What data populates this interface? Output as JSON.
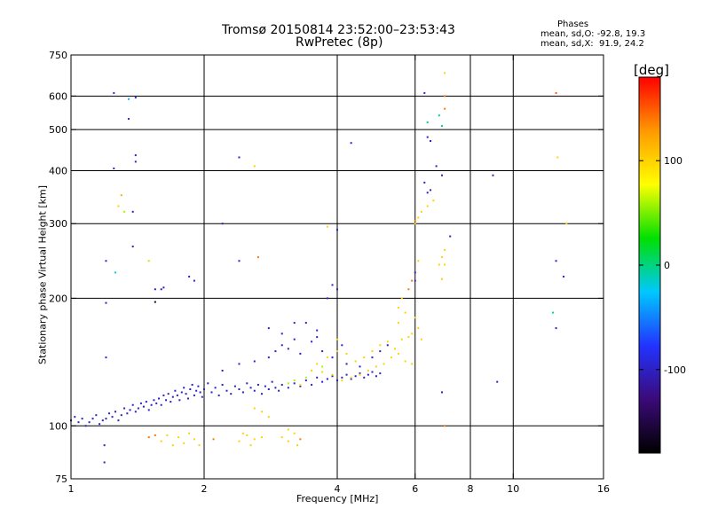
{
  "chart_data": {
    "type": "scatter",
    "title": "Tromsø 20150814 23:52:00–23:53:43",
    "subtitle": "RwPretec (8p)",
    "stats": {
      "title": "Phases",
      "line_o": "mean, sd,O: -92.8, 19.3",
      "line_x": "mean, sd,X:  91.9, 24.2"
    },
    "xlabel": "Frequency [MHz]",
    "ylabel": "Stationary phase Virtual Height [km]",
    "x_scale": "log",
    "y_scale": "log",
    "xlim": [
      1,
      16
    ],
    "ylim": [
      75,
      750
    ],
    "x_ticks": [
      1,
      2,
      4,
      6,
      8,
      10,
      16
    ],
    "y_ticks": [
      75,
      100,
      200,
      300,
      400,
      500,
      600,
      750
    ],
    "x_gridlines": [
      2,
      4,
      6,
      8,
      10
    ],
    "y_gridlines": [
      100,
      200,
      300,
      400,
      500,
      600
    ],
    "grid": true,
    "colorbar": {
      "label": "[deg]",
      "range": [
        -180,
        180
      ],
      "ticks": [
        100,
        0,
        -100
      ],
      "colors": [
        "#000000",
        "#3b0a78",
        "#2233ff",
        "#00c8ff",
        "#00e000",
        "#ffff00",
        "#ff9900",
        "#ff0000"
      ]
    },
    "points": [
      [
        1.0,
        103,
        -100
      ],
      [
        1.02,
        105,
        -100
      ],
      [
        1.04,
        102,
        -100
      ],
      [
        1.06,
        104,
        -100
      ],
      [
        1.08,
        100,
        -100
      ],
      [
        1.1,
        102,
        -100
      ],
      [
        1.12,
        104,
        -100
      ],
      [
        1.14,
        106,
        -100
      ],
      [
        1.16,
        101,
        -100
      ],
      [
        1.18,
        103,
        -100
      ],
      [
        1.2,
        104,
        -100
      ],
      [
        1.22,
        107,
        -100
      ],
      [
        1.24,
        105,
        -100
      ],
      [
        1.26,
        108,
        -100
      ],
      [
        1.28,
        103,
        -100
      ],
      [
        1.3,
        106,
        -100
      ],
      [
        1.32,
        110,
        -100
      ],
      [
        1.34,
        107,
        -100
      ],
      [
        1.36,
        109,
        -100
      ],
      [
        1.38,
        112,
        -100
      ],
      [
        1.4,
        108,
        -100
      ],
      [
        1.42,
        110,
        -100
      ],
      [
        1.44,
        113,
        -100
      ],
      [
        1.46,
        111,
        -100
      ],
      [
        1.48,
        114,
        -100
      ],
      [
        1.5,
        109,
        -100
      ],
      [
        1.52,
        112,
        -100
      ],
      [
        1.54,
        115,
        -100
      ],
      [
        1.56,
        113,
        -100
      ],
      [
        1.58,
        116,
        -100
      ],
      [
        1.6,
        112,
        -100
      ],
      [
        1.62,
        118,
        -100
      ],
      [
        1.64,
        115,
        -100
      ],
      [
        1.66,
        119,
        -100
      ],
      [
        1.68,
        114,
        -100
      ],
      [
        1.7,
        117,
        -100
      ],
      [
        1.72,
        121,
        -100
      ],
      [
        1.74,
        118,
        -100
      ],
      [
        1.76,
        115,
        -100
      ],
      [
        1.78,
        120,
        -100
      ],
      [
        1.8,
        123,
        -100
      ],
      [
        1.82,
        119,
        -100
      ],
      [
        1.84,
        116,
        -100
      ],
      [
        1.86,
        122,
        -100
      ],
      [
        1.88,
        125,
        -100
      ],
      [
        1.9,
        118,
        -100
      ],
      [
        1.92,
        121,
        -100
      ],
      [
        1.94,
        124,
        -100
      ],
      [
        1.96,
        120,
        -100
      ],
      [
        1.98,
        117,
        -100
      ],
      [
        2.0,
        122,
        -100
      ],
      [
        2.04,
        126,
        -100
      ],
      [
        2.08,
        120,
        -100
      ],
      [
        2.12,
        123,
        -100
      ],
      [
        2.16,
        118,
        -100
      ],
      [
        2.2,
        125,
        -100
      ],
      [
        2.25,
        121,
        -100
      ],
      [
        2.3,
        119,
        -100
      ],
      [
        2.35,
        124,
        -100
      ],
      [
        2.4,
        122,
        -100
      ],
      [
        2.45,
        120,
        -100
      ],
      [
        2.5,
        126,
        -100
      ],
      [
        2.55,
        123,
        -100
      ],
      [
        2.6,
        121,
        -100
      ],
      [
        2.65,
        125,
        -100
      ],
      [
        2.7,
        119,
        -100
      ],
      [
        2.75,
        124,
        -100
      ],
      [
        2.8,
        122,
        -100
      ],
      [
        2.85,
        127,
        -100
      ],
      [
        2.9,
        123,
        -100
      ],
      [
        2.95,
        121,
        -100
      ],
      [
        3.0,
        125,
        -100
      ],
      [
        3.1,
        123,
        -100
      ],
      [
        3.2,
        126,
        -100
      ],
      [
        3.3,
        124,
        -100
      ],
      [
        3.4,
        128,
        -100
      ],
      [
        3.5,
        125,
        -100
      ],
      [
        3.6,
        130,
        -100
      ],
      [
        3.7,
        127,
        -100
      ],
      [
        3.8,
        129,
        -100
      ],
      [
        3.9,
        131,
        -100
      ],
      [
        4.0,
        128,
        -100
      ],
      [
        4.1,
        130,
        -100
      ],
      [
        4.2,
        132,
        -100
      ],
      [
        4.3,
        129,
        -100
      ],
      [
        4.4,
        131,
        -100
      ],
      [
        4.5,
        133,
        -100
      ],
      [
        4.6,
        130,
        -100
      ],
      [
        4.7,
        132,
        -100
      ],
      [
        4.8,
        134,
        -100
      ],
      [
        4.9,
        131,
        -100
      ],
      [
        5.0,
        133,
        -100
      ],
      [
        2.2,
        135,
        -100
      ],
      [
        2.4,
        140,
        -100
      ],
      [
        2.6,
        142,
        -100
      ],
      [
        2.8,
        145,
        -100
      ],
      [
        2.9,
        150,
        -100
      ],
      [
        3.0,
        155,
        -100
      ],
      [
        3.1,
        152,
        -100
      ],
      [
        3.3,
        148,
        -100
      ],
      [
        3.5,
        158,
        -100
      ],
      [
        3.6,
        162,
        -100
      ],
      [
        3.7,
        150,
        -100
      ],
      [
        3.9,
        145,
        -100
      ],
      [
        4.2,
        140,
        -100
      ],
      [
        4.5,
        138,
        -100
      ],
      [
        4.8,
        145,
        -100
      ],
      [
        5.0,
        150,
        -100
      ],
      [
        5.2,
        155,
        -100
      ],
      [
        2.8,
        170,
        -100
      ],
      [
        3.0,
        165,
        -100
      ],
      [
        3.2,
        160,
        -100
      ],
      [
        3.4,
        175,
        -100
      ],
      [
        3.6,
        168,
        -100
      ],
      [
        4.1,
        155,
        -100
      ],
      [
        3.2,
        175,
        -100
      ],
      [
        3.1,
        126,
        60
      ],
      [
        3.2,
        128,
        60
      ],
      [
        3.3,
        125,
        90
      ],
      [
        3.5,
        135,
        100
      ],
      [
        3.6,
        140,
        100
      ],
      [
        3.7,
        138,
        60
      ],
      [
        3.8,
        145,
        100
      ],
      [
        4.0,
        150,
        100
      ],
      [
        4.2,
        148,
        100
      ],
      [
        4.4,
        142,
        100
      ],
      [
        4.6,
        145,
        100
      ],
      [
        4.8,
        150,
        100
      ],
      [
        5.0,
        155,
        100
      ],
      [
        5.2,
        158,
        100
      ],
      [
        5.4,
        152,
        100
      ],
      [
        5.6,
        160,
        100
      ],
      [
        5.8,
        162,
        100
      ],
      [
        5.9,
        165,
        100
      ],
      [
        5.5,
        148,
        100
      ],
      [
        5.3,
        145,
        100
      ],
      [
        5.1,
        140,
        100
      ],
      [
        4.9,
        138,
        100
      ],
      [
        4.7,
        135,
        100
      ],
      [
        4.5,
        132,
        100
      ],
      [
        4.3,
        130,
        100
      ],
      [
        4.1,
        128,
        100
      ],
      [
        3.9,
        132,
        100
      ],
      [
        3.7,
        134,
        100
      ],
      [
        3.4,
        130,
        60
      ],
      [
        4.0,
        160,
        100
      ],
      [
        5.7,
        142,
        100
      ],
      [
        5.9,
        140,
        100
      ],
      [
        5.5,
        190,
        100
      ],
      [
        5.6,
        200,
        100
      ],
      [
        5.8,
        210,
        140
      ],
      [
        5.9,
        220,
        140
      ],
      [
        6.0,
        230,
        100
      ],
      [
        6.1,
        245,
        100
      ],
      [
        5.7,
        185,
        100
      ],
      [
        5.5,
        175,
        100
      ],
      [
        6.0,
        300,
        100
      ],
      [
        6.2,
        320,
        100
      ],
      [
        6.4,
        330,
        100
      ],
      [
        6.6,
        340,
        100
      ],
      [
        6.1,
        310,
        100
      ],
      [
        7.0,
        260,
        100
      ],
      [
        6.9,
        250,
        100
      ],
      [
        7.0,
        240,
        100
      ],
      [
        7.0,
        680,
        100
      ],
      [
        7.0,
        600,
        140
      ],
      [
        7.0,
        560,
        140
      ],
      [
        6.0,
        305,
        140
      ],
      [
        1.6,
        92,
        100
      ],
      [
        1.65,
        95,
        100
      ],
      [
        1.7,
        90,
        100
      ],
      [
        1.75,
        94,
        100
      ],
      [
        1.8,
        91,
        100
      ],
      [
        1.85,
        96,
        100
      ],
      [
        1.9,
        93,
        100
      ],
      [
        1.95,
        90,
        100
      ],
      [
        2.4,
        92,
        100
      ],
      [
        2.5,
        95,
        100
      ],
      [
        2.6,
        93,
        100
      ],
      [
        2.55,
        90,
        100
      ],
      [
        2.7,
        94,
        100
      ],
      [
        2.45,
        96,
        100
      ],
      [
        3.0,
        94,
        100
      ],
      [
        3.1,
        92,
        100
      ],
      [
        3.2,
        96,
        100
      ],
      [
        3.25,
        90,
        100
      ],
      [
        3.1,
        98,
        100
      ],
      [
        2.6,
        110,
        100
      ],
      [
        2.7,
        108,
        100
      ],
      [
        2.8,
        105,
        100
      ],
      [
        1.5,
        94,
        140
      ],
      [
        2.1,
        93,
        140
      ],
      [
        3.3,
        93,
        140
      ],
      [
        7.0,
        100,
        140
      ],
      [
        1.55,
        95,
        140
      ],
      [
        1.25,
        610,
        -90
      ],
      [
        1.35,
        590,
        -30
      ],
      [
        1.4,
        595,
        -90
      ],
      [
        1.35,
        530,
        -100
      ],
      [
        1.4,
        435,
        -100
      ],
      [
        1.25,
        405,
        -100
      ],
      [
        1.4,
        420,
        -100
      ],
      [
        1.3,
        350,
        120
      ],
      [
        1.28,
        330,
        100
      ],
      [
        1.32,
        320,
        60
      ],
      [
        1.38,
        320,
        -100
      ],
      [
        1.38,
        265,
        -100
      ],
      [
        1.2,
        245,
        -100
      ],
      [
        1.26,
        230,
        -20
      ],
      [
        1.2,
        195,
        -100
      ],
      [
        1.5,
        245,
        60
      ],
      [
        1.55,
        210,
        -100
      ],
      [
        1.6,
        210,
        -100
      ],
      [
        1.62,
        212,
        -100
      ],
      [
        1.85,
        225,
        -100
      ],
      [
        1.9,
        220,
        -100
      ],
      [
        1.55,
        196,
        -160
      ],
      [
        2.4,
        430,
        -100
      ],
      [
        2.6,
        410,
        100
      ],
      [
        2.65,
        250,
        140
      ],
      [
        2.4,
        245,
        -100
      ],
      [
        2.2,
        300,
        -100
      ],
      [
        1.2,
        145,
        -100
      ],
      [
        1.19,
        82,
        -100
      ],
      [
        1.19,
        90,
        -100
      ],
      [
        3.8,
        295,
        100
      ],
      [
        4.0,
        290,
        -100
      ],
      [
        4.3,
        465,
        -100
      ],
      [
        3.9,
        215,
        -100
      ],
      [
        3.8,
        200,
        -100
      ],
      [
        4.0,
        210,
        -100
      ],
      [
        6.3,
        610,
        -100
      ],
      [
        6.4,
        480,
        -100
      ],
      [
        6.5,
        470,
        -100
      ],
      [
        6.3,
        375,
        -100
      ],
      [
        6.4,
        355,
        -100
      ],
      [
        6.5,
        360,
        -100
      ],
      [
        6.9,
        510,
        0
      ],
      [
        6.8,
        540,
        0
      ],
      [
        6.4,
        520,
        0
      ],
      [
        6.7,
        410,
        -100
      ],
      [
        6.9,
        390,
        -100
      ],
      [
        6.8,
        240,
        100
      ],
      [
        6.9,
        222,
        100
      ],
      [
        7.2,
        280,
        -100
      ],
      [
        6.0,
        220,
        -100
      ],
      [
        6.0,
        230,
        -100
      ],
      [
        9.0,
        390,
        -100
      ],
      [
        9.2,
        127,
        -100
      ],
      [
        12.5,
        610,
        150
      ],
      [
        12.6,
        430,
        100
      ],
      [
        12.5,
        245,
        -100
      ],
      [
        13.0,
        225,
        -100
      ],
      [
        13.2,
        300,
        100
      ],
      [
        12.3,
        185,
        0
      ],
      [
        12.5,
        170,
        -100
      ],
      [
        6.0,
        180,
        100
      ],
      [
        6.1,
        170,
        100
      ],
      [
        6.2,
        160,
        100
      ],
      [
        6.9,
        120,
        -100
      ]
    ]
  }
}
